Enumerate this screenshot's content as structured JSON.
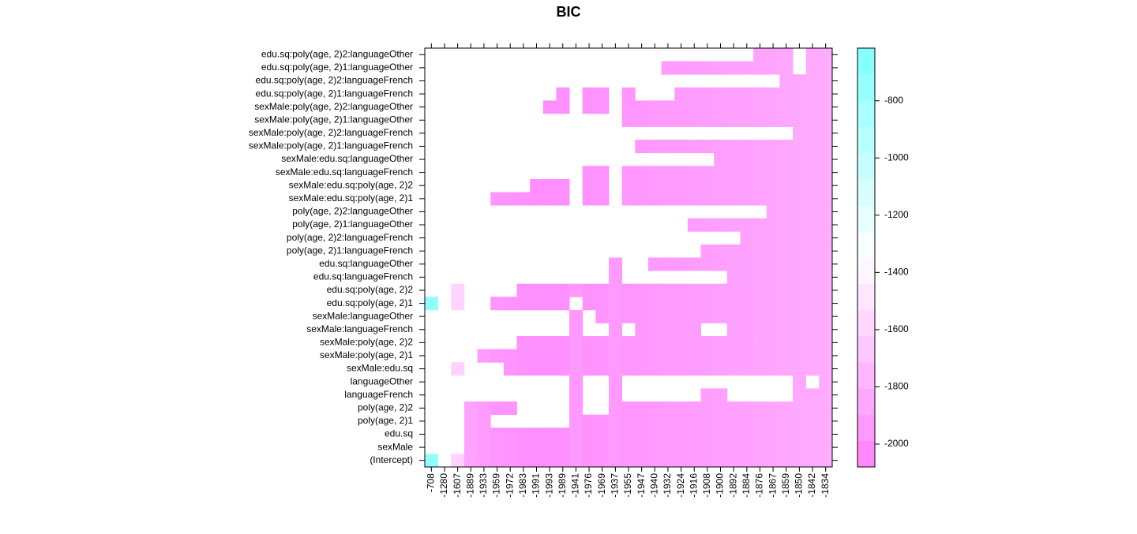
{
  "chart_data": {
    "type": "heatmap",
    "title": "BIC",
    "rows": [
      "edu.sq:poly(age, 2)2:languageOther",
      "edu.sq:poly(age, 2)1:languageOther",
      "edu.sq:poly(age, 2)2:languageFrench",
      "edu.sq:poly(age, 2)1:languageFrench",
      "sexMale:poly(age, 2)2:languageOther",
      "sexMale:poly(age, 2)1:languageOther",
      "sexMale:poly(age, 2)2:languageFrench",
      "sexMale:poly(age, 2)1:languageFrench",
      "sexMale:edu.sq:languageOther",
      "sexMale:edu.sq:languageFrench",
      "sexMale:edu.sq:poly(age, 2)2",
      "sexMale:edu.sq:poly(age, 2)1",
      "poly(age, 2)2:languageOther",
      "poly(age, 2)1:languageOther",
      "poly(age, 2)2:languageFrench",
      "poly(age, 2)1:languageFrench",
      "edu.sq:languageOther",
      "edu.sq:languageFrench",
      "edu.sq:poly(age, 2)2",
      "edu.sq:poly(age, 2)1",
      "sexMale:languageOther",
      "sexMale:languageFrench",
      "sexMale:poly(age, 2)2",
      "sexMale:poly(age, 2)1",
      "sexMale:edu.sq",
      "languageOther",
      "languageFrench",
      "poly(age, 2)2",
      "poly(age, 2)1",
      "edu.sq",
      "sexMale",
      "(Intercept)"
    ],
    "x": [
      -708,
      -1280,
      -1607,
      -1889,
      -1933,
      -1959,
      -1972,
      -1983,
      -1991,
      -1993,
      -1989,
      -1941,
      -1976,
      -1969,
      -1937,
      -1955,
      -1947,
      -1940,
      -1932,
      -1924,
      -1916,
      -1908,
      -1900,
      -1892,
      -1884,
      -1876,
      -1867,
      -1859,
      -1850,
      -1842,
      -1834
    ],
    "included": [
      [
        0,
        0,
        0,
        0,
        0,
        0,
        0,
        0,
        0,
        0,
        0,
        0,
        0,
        0,
        0,
        0,
        0,
        0,
        0,
        0,
        0,
        0,
        0,
        0,
        0,
        1,
        1,
        1,
        0,
        1,
        1
      ],
      [
        0,
        0,
        0,
        0,
        0,
        0,
        0,
        0,
        0,
        0,
        0,
        0,
        0,
        0,
        0,
        0,
        0,
        0,
        1,
        1,
        1,
        1,
        1,
        1,
        1,
        1,
        1,
        1,
        0,
        1,
        1
      ],
      [
        0,
        0,
        0,
        0,
        0,
        0,
        0,
        0,
        0,
        0,
        0,
        0,
        0,
        0,
        0,
        0,
        0,
        0,
        0,
        0,
        0,
        0,
        0,
        0,
        0,
        0,
        0,
        1,
        1,
        1,
        1
      ],
      [
        0,
        0,
        0,
        0,
        0,
        0,
        0,
        0,
        0,
        0,
        1,
        0,
        1,
        1,
        0,
        1,
        0,
        0,
        0,
        1,
        1,
        1,
        1,
        1,
        1,
        1,
        1,
        1,
        1,
        1,
        1
      ],
      [
        0,
        0,
        0,
        0,
        0,
        0,
        0,
        0,
        0,
        1,
        1,
        0,
        1,
        1,
        0,
        1,
        1,
        1,
        1,
        1,
        1,
        1,
        1,
        1,
        1,
        1,
        1,
        1,
        1,
        1,
        1
      ],
      [
        0,
        0,
        0,
        0,
        0,
        0,
        0,
        0,
        0,
        0,
        0,
        0,
        0,
        0,
        0,
        1,
        1,
        1,
        1,
        1,
        1,
        1,
        1,
        1,
        1,
        1,
        1,
        1,
        1,
        1,
        1
      ],
      [
        0,
        0,
        0,
        0,
        0,
        0,
        0,
        0,
        0,
        0,
        0,
        0,
        0,
        0,
        0,
        0,
        0,
        0,
        0,
        0,
        0,
        0,
        0,
        0,
        0,
        0,
        0,
        0,
        1,
        1,
        1
      ],
      [
        0,
        0,
        0,
        0,
        0,
        0,
        0,
        0,
        0,
        0,
        0,
        0,
        0,
        0,
        0,
        0,
        1,
        1,
        1,
        1,
        1,
        1,
        1,
        1,
        1,
        1,
        1,
        1,
        1,
        1,
        1
      ],
      [
        0,
        0,
        0,
        0,
        0,
        0,
        0,
        0,
        0,
        0,
        0,
        0,
        0,
        0,
        0,
        0,
        0,
        0,
        0,
        0,
        0,
        0,
        1,
        1,
        1,
        1,
        1,
        1,
        1,
        1,
        1
      ],
      [
        0,
        0,
        0,
        0,
        0,
        0,
        0,
        0,
        0,
        0,
        0,
        0,
        1,
        1,
        0,
        1,
        1,
        1,
        1,
        1,
        1,
        1,
        1,
        1,
        1,
        1,
        1,
        1,
        1,
        1,
        1
      ],
      [
        0,
        0,
        0,
        0,
        0,
        0,
        0,
        0,
        1,
        1,
        1,
        0,
        1,
        1,
        0,
        1,
        1,
        1,
        1,
        1,
        1,
        1,
        1,
        1,
        1,
        1,
        1,
        1,
        1,
        1,
        1
      ],
      [
        0,
        0,
        0,
        0,
        0,
        1,
        1,
        1,
        1,
        1,
        1,
        0,
        1,
        1,
        0,
        1,
        1,
        1,
        1,
        1,
        1,
        1,
        1,
        1,
        1,
        1,
        1,
        1,
        1,
        1,
        1
      ],
      [
        0,
        0,
        0,
        0,
        0,
        0,
        0,
        0,
        0,
        0,
        0,
        0,
        0,
        0,
        0,
        0,
        0,
        0,
        0,
        0,
        0,
        0,
        0,
        0,
        0,
        0,
        1,
        1,
        1,
        1,
        1
      ],
      [
        0,
        0,
        0,
        0,
        0,
        0,
        0,
        0,
        0,
        0,
        0,
        0,
        0,
        0,
        0,
        0,
        0,
        0,
        0,
        0,
        1,
        1,
        1,
        1,
        1,
        1,
        1,
        1,
        1,
        1,
        1
      ],
      [
        0,
        0,
        0,
        0,
        0,
        0,
        0,
        0,
        0,
        0,
        0,
        0,
        0,
        0,
        0,
        0,
        0,
        0,
        0,
        0,
        0,
        0,
        0,
        0,
        1,
        1,
        1,
        1,
        1,
        1,
        1
      ],
      [
        0,
        0,
        0,
        0,
        0,
        0,
        0,
        0,
        0,
        0,
        0,
        0,
        0,
        0,
        0,
        0,
        0,
        0,
        0,
        0,
        0,
        1,
        1,
        1,
        1,
        1,
        1,
        1,
        1,
        1,
        1
      ],
      [
        0,
        0,
        0,
        0,
        0,
        0,
        0,
        0,
        0,
        0,
        0,
        0,
        0,
        0,
        1,
        0,
        0,
        1,
        1,
        1,
        1,
        1,
        1,
        1,
        1,
        1,
        1,
        1,
        1,
        1,
        1
      ],
      [
        0,
        0,
        0,
        0,
        0,
        0,
        0,
        0,
        0,
        0,
        0,
        0,
        0,
        0,
        1,
        0,
        0,
        0,
        0,
        0,
        0,
        0,
        0,
        1,
        1,
        1,
        1,
        1,
        1,
        1,
        1
      ],
      [
        0,
        0,
        1,
        0,
        0,
        0,
        0,
        1,
        1,
        1,
        1,
        1,
        1,
        1,
        1,
        1,
        1,
        1,
        1,
        1,
        1,
        1,
        1,
        1,
        1,
        1,
        1,
        1,
        1,
        1,
        1
      ],
      [
        1,
        0,
        1,
        0,
        0,
        1,
        1,
        1,
        1,
        1,
        1,
        0,
        1,
        1,
        1,
        1,
        1,
        1,
        1,
        1,
        1,
        1,
        1,
        1,
        1,
        1,
        1,
        1,
        1,
        1,
        1
      ],
      [
        0,
        0,
        0,
        0,
        0,
        0,
        0,
        0,
        0,
        0,
        0,
        1,
        0,
        1,
        1,
        1,
        1,
        1,
        1,
        1,
        1,
        1,
        1,
        1,
        1,
        1,
        1,
        1,
        1,
        1,
        1
      ],
      [
        0,
        0,
        0,
        0,
        0,
        0,
        0,
        0,
        0,
        0,
        0,
        1,
        0,
        0,
        1,
        0,
        1,
        1,
        1,
        1,
        1,
        0,
        0,
        1,
        1,
        1,
        1,
        1,
        1,
        1,
        1
      ],
      [
        0,
        0,
        0,
        0,
        0,
        0,
        0,
        1,
        1,
        1,
        1,
        1,
        1,
        1,
        1,
        1,
        1,
        1,
        1,
        1,
        1,
        1,
        1,
        1,
        1,
        1,
        1,
        1,
        1,
        1,
        1
      ],
      [
        0,
        0,
        0,
        0,
        1,
        1,
        1,
        1,
        1,
        1,
        1,
        1,
        1,
        1,
        1,
        1,
        1,
        1,
        1,
        1,
        1,
        1,
        1,
        1,
        1,
        1,
        1,
        1,
        1,
        1,
        1
      ],
      [
        0,
        0,
        1,
        0,
        0,
        0,
        1,
        1,
        1,
        1,
        1,
        1,
        1,
        1,
        1,
        1,
        1,
        1,
        1,
        1,
        1,
        1,
        1,
        1,
        1,
        1,
        1,
        1,
        1,
        1,
        1
      ],
      [
        0,
        0,
        0,
        0,
        0,
        0,
        0,
        0,
        0,
        0,
        0,
        1,
        0,
        0,
        1,
        0,
        0,
        0,
        0,
        0,
        0,
        0,
        0,
        0,
        0,
        0,
        0,
        0,
        1,
        0,
        1
      ],
      [
        0,
        0,
        0,
        0,
        0,
        0,
        0,
        0,
        0,
        0,
        0,
        1,
        0,
        0,
        1,
        0,
        0,
        0,
        0,
        0,
        0,
        1,
        1,
        0,
        0,
        0,
        0,
        0,
        1,
        1,
        1
      ],
      [
        0,
        0,
        0,
        1,
        1,
        1,
        1,
        0,
        0,
        0,
        0,
        1,
        0,
        0,
        1,
        1,
        1,
        1,
        1,
        1,
        1,
        1,
        1,
        1,
        1,
        1,
        1,
        1,
        1,
        1,
        1
      ],
      [
        0,
        0,
        0,
        1,
        1,
        0,
        0,
        0,
        0,
        0,
        0,
        1,
        1,
        1,
        1,
        1,
        1,
        1,
        1,
        1,
        1,
        1,
        1,
        1,
        1,
        1,
        1,
        1,
        1,
        1,
        1
      ],
      [
        0,
        0,
        0,
        1,
        1,
        1,
        1,
        1,
        1,
        1,
        1,
        1,
        1,
        1,
        1,
        1,
        1,
        1,
        1,
        1,
        1,
        1,
        1,
        1,
        1,
        1,
        1,
        1,
        1,
        1,
        1
      ],
      [
        0,
        0,
        0,
        1,
        1,
        1,
        1,
        1,
        1,
        1,
        1,
        1,
        1,
        1,
        1,
        1,
        1,
        1,
        1,
        1,
        1,
        1,
        1,
        1,
        1,
        1,
        1,
        1,
        1,
        1,
        1
      ],
      [
        1,
        0,
        1,
        1,
        1,
        1,
        1,
        1,
        1,
        1,
        1,
        1,
        1,
        1,
        1,
        1,
        1,
        1,
        1,
        1,
        1,
        1,
        1,
        1,
        1,
        1,
        1,
        1,
        1,
        1,
        1
      ]
    ],
    "zlim": [
      -2080,
      -616
    ],
    "colorbar_ticks": [
      -2000,
      -1800,
      -1600,
      -1400,
      -1200,
      -1000,
      -800
    ],
    "colors": {
      "low": "#ff80ff",
      "mid": "#ffffff",
      "high": "#80ffff"
    }
  }
}
